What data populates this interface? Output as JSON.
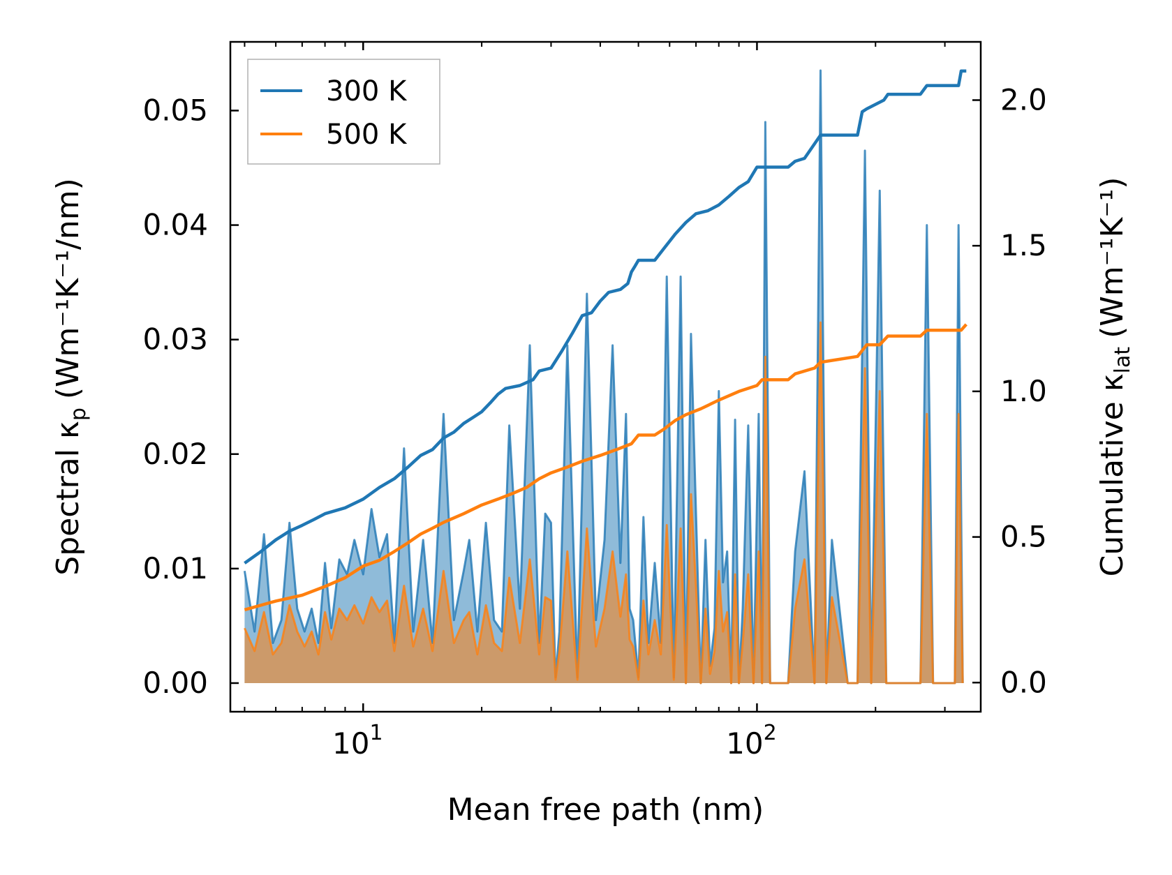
{
  "chart_data": {
    "type": "line",
    "xscale": "log",
    "xlabel": "Mean free path (nm)",
    "ylabel_left": "Spectral κ",
    "ylabel_left_sub": "p",
    "ylabel_left_unit": "(Wm⁻¹K⁻¹/nm)",
    "ylabel_right": "Cumulative κ",
    "ylabel_right_sub": "lat",
    "ylabel_right_unit": "(Wm⁻¹K⁻¹)",
    "xlim": [
      4.6,
      370
    ],
    "ylim_left": [
      -0.0025,
      0.056
    ],
    "ylim_right": [
      -0.1,
      2.2
    ],
    "x_ticks": [
      {
        "value": 10,
        "label": "10",
        "exp": "1"
      },
      {
        "value": 100,
        "label": "10",
        "exp": "2"
      }
    ],
    "y_ticks_left": [
      {
        "value": 0.0,
        "label": "0.00"
      },
      {
        "value": 0.01,
        "label": "0.01"
      },
      {
        "value": 0.02,
        "label": "0.02"
      },
      {
        "value": 0.03,
        "label": "0.03"
      },
      {
        "value": 0.04,
        "label": "0.04"
      },
      {
        "value": 0.05,
        "label": "0.05"
      }
    ],
    "y_ticks_right": [
      {
        "value": 0.0,
        "label": "0.0"
      },
      {
        "value": 0.5,
        "label": "0.5"
      },
      {
        "value": 1.0,
        "label": "1.0"
      },
      {
        "value": 1.5,
        "label": "1.5"
      },
      {
        "value": 2.0,
        "label": "2.0"
      }
    ],
    "legend": {
      "position": "top-left",
      "entries": [
        "300 K",
        "500 K"
      ]
    },
    "series": [
      {
        "name": "300 K",
        "color": "#1f77b4",
        "spectral": {
          "x": [
            5.0,
            5.3,
            5.6,
            5.9,
            6.2,
            6.5,
            6.8,
            7.1,
            7.4,
            7.7,
            8.0,
            8.3,
            8.7,
            9.1,
            9.5,
            10.0,
            10.5,
            11.0,
            11.5,
            12.0,
            12.7,
            13.4,
            14.2,
            15.0,
            16.0,
            17.0,
            18.0,
            18.6,
            19.5,
            20.5,
            21.5,
            22.5,
            23.5,
            25.0,
            26.5,
            28.0,
            29.0,
            30.0,
            30.8,
            31.5,
            33.0,
            35.0,
            37.0,
            39.0,
            41.0,
            43.0,
            45.0,
            46.5,
            47.5,
            48.5,
            50.0,
            51.5,
            53.0,
            55.0,
            57.0,
            59.0,
            61.5,
            64.0,
            66.0,
            68.0,
            70.0,
            72.0,
            74.0,
            76.0,
            78.0,
            80.0,
            82.0,
            84.0,
            86.0,
            88.0,
            90.0,
            92.0,
            95.0,
            98.0,
            101.0,
            103.0,
            105.0,
            108.0,
            120.0,
            125.0,
            132.0,
            140.0,
            145.0,
            150.0,
            155.0,
            170.0,
            180.0,
            188.0,
            195.0,
            205.0,
            213.0,
            220.0,
            230.0,
            260.0,
            270.0,
            280.0,
            300.0,
            318.0,
            325.0,
            333.0
          ],
          "values": [
            0.0098,
            0.0045,
            0.013,
            0.0035,
            0.0055,
            0.014,
            0.0065,
            0.0045,
            0.0065,
            0.0035,
            0.0105,
            0.0048,
            0.0108,
            0.0095,
            0.0125,
            0.0095,
            0.0152,
            0.011,
            0.013,
            0.0035,
            0.0205,
            0.0045,
            0.0125,
            0.0035,
            0.0235,
            0.0055,
            0.0098,
            0.0125,
            0.0045,
            0.014,
            0.0055,
            0.0045,
            0.0225,
            0.0065,
            0.0295,
            0.0035,
            0.0148,
            0.014,
            0.0005,
            0.0045,
            0.0295,
            0.0005,
            0.034,
            0.0055,
            0.0125,
            0.0295,
            0.0105,
            0.0235,
            0.0065,
            0.0055,
            0.0005,
            0.0145,
            0.0035,
            0.0105,
            0.0035,
            0.0355,
            0.0005,
            0.0355,
            0.0,
            0.0305,
            0.015,
            0.0,
            0.0125,
            0.0015,
            0.0048,
            0.0255,
            0.0088,
            0.0115,
            0.0,
            0.023,
            0.0,
            0.0065,
            0.0225,
            0.0,
            0.0235,
            0.0,
            0.049,
            0.0,
            0.0,
            0.0115,
            0.0185,
            0.0,
            0.0535,
            0.0,
            0.0125,
            0.0,
            0.0,
            0.0465,
            0.0,
            0.043,
            0.0,
            0.0,
            0.0,
            0.0,
            0.04,
            0.0,
            0.0,
            0.0,
            0.04,
            0.0
          ]
        },
        "cumulative": {
          "x": [
            5.0,
            5.5,
            6.0,
            6.5,
            7.0,
            7.5,
            8.0,
            9.0,
            10.0,
            11.0,
            12.0,
            13.0,
            14.0,
            15.0,
            16.0,
            17.0,
            18.0,
            19.0,
            20.0,
            21.0,
            22.0,
            23.0,
            25.0,
            27.0,
            28.0,
            30.0,
            32.0,
            34.0,
            36.0,
            38.0,
            40.0,
            42.0,
            45.0,
            47.0,
            48.0,
            49.0,
            50.0,
            51.0,
            55.0,
            58.0,
            62.0,
            66.0,
            70.0,
            75.0,
            80.0,
            85.0,
            90.0,
            95.0,
            100.0,
            103.0,
            120.0,
            125.0,
            132.0,
            140.0,
            145.0,
            150.0,
            180.0,
            185.0,
            190.0,
            210.0,
            215.0,
            260.0,
            270.0,
            325.0,
            330.0,
            340.0
          ],
          "values": [
            0.41,
            0.45,
            0.49,
            0.52,
            0.54,
            0.56,
            0.58,
            0.6,
            0.63,
            0.67,
            0.7,
            0.74,
            0.78,
            0.8,
            0.84,
            0.86,
            0.89,
            0.91,
            0.93,
            0.96,
            0.99,
            1.01,
            1.02,
            1.04,
            1.07,
            1.08,
            1.14,
            1.2,
            1.26,
            1.27,
            1.31,
            1.34,
            1.35,
            1.37,
            1.41,
            1.43,
            1.45,
            1.45,
            1.45,
            1.49,
            1.54,
            1.58,
            1.61,
            1.62,
            1.64,
            1.67,
            1.7,
            1.72,
            1.77,
            1.77,
            1.77,
            1.79,
            1.8,
            1.85,
            1.88,
            1.88,
            1.88,
            1.96,
            1.97,
            2.0,
            2.02,
            2.02,
            2.05,
            2.05,
            2.1,
            2.1
          ]
        }
      },
      {
        "name": "500 K",
        "color": "#ff7f0e",
        "spectral": {
          "x": [
            5.0,
            5.3,
            5.6,
            5.9,
            6.2,
            6.5,
            6.8,
            7.1,
            7.4,
            7.7,
            8.0,
            8.3,
            8.7,
            9.1,
            9.5,
            10.0,
            10.5,
            11.0,
            11.5,
            12.0,
            12.7,
            13.4,
            14.2,
            15.0,
            16.0,
            17.0,
            18.0,
            18.6,
            19.5,
            20.5,
            21.5,
            22.5,
            23.5,
            25.0,
            26.5,
            28.0,
            29.0,
            30.0,
            30.8,
            31.5,
            33.0,
            35.0,
            37.0,
            39.0,
            41.0,
            43.0,
            45.0,
            46.5,
            47.5,
            48.5,
            50.0,
            51.5,
            53.0,
            55.0,
            57.0,
            59.0,
            61.5,
            64.0,
            66.0,
            68.0,
            70.0,
            72.0,
            74.0,
            76.0,
            78.0,
            80.0,
            82.0,
            84.0,
            86.0,
            88.0,
            90.0,
            92.0,
            95.0,
            98.0,
            101.0,
            103.0,
            105.0,
            108.0,
            120.0,
            125.0,
            132.0,
            140.0,
            145.0,
            150.0,
            155.0,
            170.0,
            180.0,
            188.0,
            195.0,
            205.0,
            213.0,
            220.0,
            230.0,
            260.0,
            270.0,
            280.0,
            300.0,
            318.0,
            325.0,
            333.0
          ],
          "values": [
            0.0048,
            0.0028,
            0.0062,
            0.0025,
            0.0035,
            0.0068,
            0.0045,
            0.0032,
            0.0045,
            0.0025,
            0.0062,
            0.0038,
            0.0065,
            0.0055,
            0.0068,
            0.0052,
            0.0075,
            0.0062,
            0.0072,
            0.0028,
            0.0085,
            0.0032,
            0.0065,
            0.0028,
            0.0098,
            0.0035,
            0.0055,
            0.0062,
            0.0025,
            0.0068,
            0.0035,
            0.0028,
            0.0092,
            0.0035,
            0.0108,
            0.0025,
            0.0075,
            0.0072,
            0.0003,
            0.0028,
            0.0115,
            0.0003,
            0.0135,
            0.0032,
            0.0065,
            0.0115,
            0.0058,
            0.0095,
            0.0038,
            0.0032,
            0.0003,
            0.0072,
            0.0025,
            0.0055,
            0.0025,
            0.0138,
            0.0003,
            0.0135,
            0.0,
            0.0165,
            0.0085,
            0.0,
            0.0065,
            0.0008,
            0.0028,
            0.0098,
            0.0045,
            0.0062,
            0.0,
            0.0095,
            0.0,
            0.0035,
            0.0095,
            0.0,
            0.0115,
            0.0,
            0.0285,
            0.0,
            0.0,
            0.0065,
            0.0108,
            0.0,
            0.0315,
            0.0,
            0.0075,
            0.0,
            0.0,
            0.0275,
            0.0,
            0.0255,
            0.0,
            0.0,
            0.0,
            0.0,
            0.0235,
            0.0,
            0.0,
            0.0,
            0.0235,
            0.0
          ]
        },
        "cumulative": {
          "x": [
            5.0,
            6.0,
            7.0,
            8.0,
            9.0,
            10.0,
            11.0,
            12.0,
            13.0,
            14.0,
            15.0,
            16.0,
            18.0,
            20.0,
            22.0,
            24.0,
            26.0,
            28.0,
            30.0,
            33.0,
            36.0,
            40.0,
            44.0,
            48.0,
            50.0,
            55.0,
            58.0,
            62.0,
            66.0,
            72.0,
            80.0,
            90.0,
            100.0,
            103.0,
            120.0,
            125.0,
            140.0,
            145.0,
            180.0,
            190.0,
            205.0,
            215.0,
            260.0,
            270.0,
            330.0,
            340.0
          ],
          "values": [
            0.25,
            0.28,
            0.3,
            0.33,
            0.36,
            0.4,
            0.42,
            0.45,
            0.48,
            0.51,
            0.53,
            0.55,
            0.58,
            0.61,
            0.63,
            0.65,
            0.67,
            0.7,
            0.72,
            0.74,
            0.76,
            0.78,
            0.8,
            0.82,
            0.85,
            0.85,
            0.87,
            0.9,
            0.92,
            0.94,
            0.97,
            1.0,
            1.02,
            1.04,
            1.04,
            1.06,
            1.08,
            1.1,
            1.12,
            1.16,
            1.16,
            1.19,
            1.19,
            1.21,
            1.21,
            1.23
          ]
        }
      }
    ]
  }
}
